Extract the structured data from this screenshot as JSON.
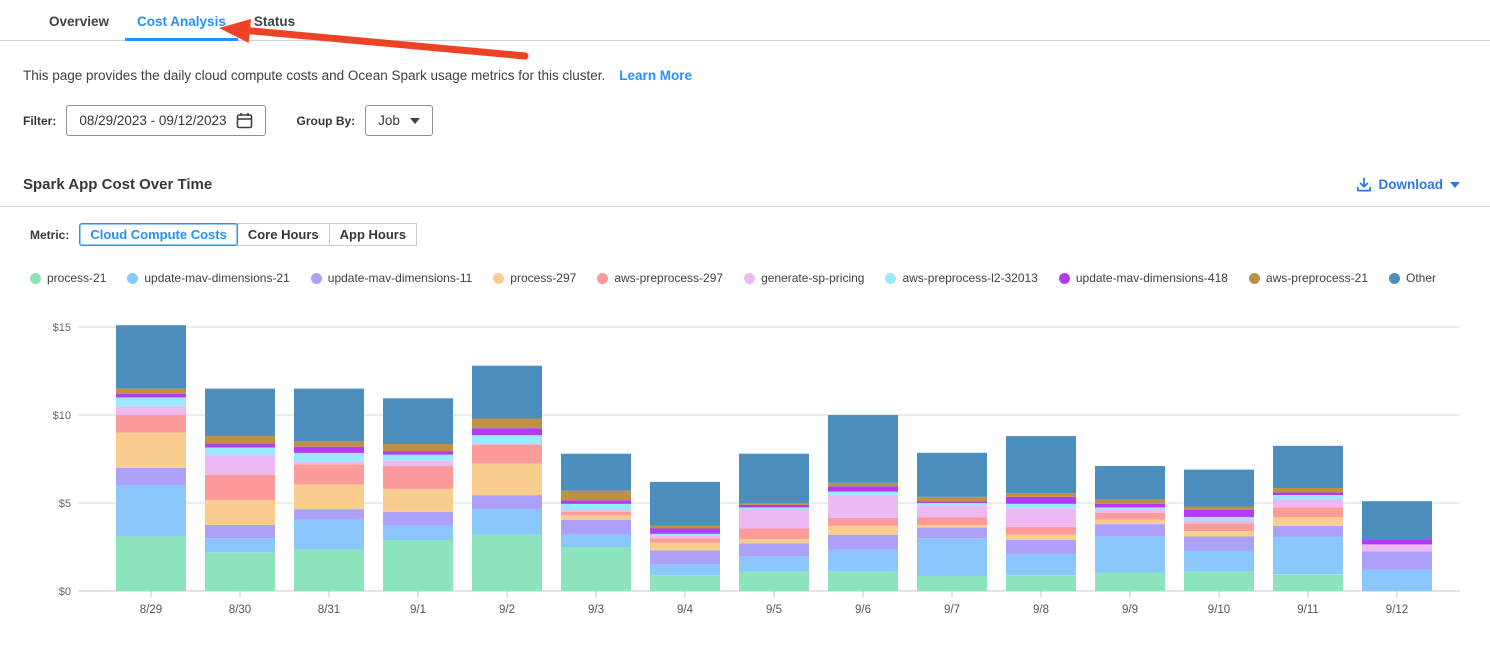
{
  "tabs": {
    "items": [
      {
        "label": "Overview",
        "active": false
      },
      {
        "label": "Cost Analysis",
        "active": true
      },
      {
        "label": "Status",
        "active": false
      }
    ]
  },
  "annotation": {
    "arrow": "red-arrow-pointing-to-cost-analysis-tab",
    "color": "#ed4226"
  },
  "description": {
    "text": "This page provides the daily cloud compute costs and Ocean Spark usage metrics for this cluster.",
    "learn_more": "Learn More"
  },
  "filters": {
    "filter_label": "Filter:",
    "date_range": "08/29/2023 - 09/12/2023",
    "calendar_icon": "calendar-icon",
    "group_by_label": "Group By:",
    "group_by_value": "Job",
    "caret_icon": "caret-down-icon"
  },
  "section": {
    "title": "Spark App Cost Over Time",
    "download_label": "Download",
    "download_icon": "download-icon",
    "download_caret_icon": "caret-down-icon"
  },
  "metric": {
    "label": "Metric:",
    "options": [
      {
        "label": "Cloud Compute Costs",
        "selected": true
      },
      {
        "label": "Core Hours",
        "selected": false
      },
      {
        "label": "App Hours",
        "selected": false
      }
    ]
  },
  "colors": {
    "accent_blue": "#2790ff",
    "download_blue": "#2979e8",
    "gridline": "#d8d8d8",
    "axis_text": "#666666",
    "arrow_red": "#ed4226"
  },
  "chart_data": {
    "type": "bar",
    "stacked": true,
    "title": "Spark App Cost Over Time",
    "xlabel": "",
    "ylabel": "",
    "ytick_prefix": "$",
    "yticks": [
      0,
      5,
      10,
      15
    ],
    "ylim": [
      0,
      16
    ],
    "grid": true,
    "legend_position": "top",
    "categories": [
      "8/29",
      "8/30",
      "8/31",
      "9/1",
      "9/2",
      "9/3",
      "9/4",
      "9/5",
      "9/6",
      "9/7",
      "9/8",
      "9/9",
      "9/10",
      "9/11",
      "9/12"
    ],
    "series": [
      {
        "name": "process-21",
        "color": "#8ce4bc",
        "values": [
          3.1,
          2.2,
          2.35,
          2.9,
          3.2,
          2.5,
          0.9,
          1.1,
          1.1,
          0.85,
          0.9,
          1.05,
          1.1,
          0.95,
          0.0
        ]
      },
      {
        "name": "update-mav-dimensions-21",
        "color": "#8ac7fd",
        "values": [
          2.9,
          0.8,
          1.7,
          0.8,
          1.45,
          0.7,
          0.6,
          0.85,
          1.25,
          2.15,
          1.2,
          2.05,
          1.2,
          2.15,
          1.2
        ]
      },
      {
        "name": "update-mav-dimensions-11",
        "color": "#aba0fa",
        "values": [
          1.0,
          0.75,
          0.6,
          0.8,
          0.8,
          0.85,
          0.8,
          0.75,
          0.85,
          0.6,
          0.8,
          0.7,
          0.8,
          0.6,
          1.05
        ]
      },
      {
        "name": "process-297",
        "color": "#f9cd8d",
        "values": [
          2.0,
          1.4,
          1.4,
          1.3,
          1.8,
          0.25,
          0.45,
          0.25,
          0.5,
          0.15,
          0.3,
          0.25,
          0.3,
          0.5,
          0.0
        ]
      },
      {
        "name": "aws-preprocess-297",
        "color": "#fd9b9b",
        "values": [
          1.0,
          1.45,
          1.15,
          1.3,
          1.05,
          0.2,
          0.25,
          0.6,
          0.45,
          0.45,
          0.45,
          0.4,
          0.45,
          0.55,
          0.0
        ]
      },
      {
        "name": "generate-sp-pricing",
        "color": "#edb9f2",
        "values": [
          0.5,
          1.1,
          0.15,
          0.3,
          0.1,
          0.1,
          0.15,
          1.05,
          1.25,
          0.65,
          1.05,
          0.15,
          0.15,
          0.45,
          0.4
        ]
      },
      {
        "name": "aws-preprocess-l2-32013",
        "color": "#9be9fd",
        "values": [
          0.5,
          0.45,
          0.5,
          0.35,
          0.45,
          0.35,
          0.1,
          0.15,
          0.25,
          0.15,
          0.25,
          0.15,
          0.2,
          0.25,
          0.0
        ]
      },
      {
        "name": "update-mav-dimensions-418",
        "color": "#b23cf5",
        "values": [
          0.2,
          0.2,
          0.35,
          0.2,
          0.4,
          0.2,
          0.3,
          0.15,
          0.3,
          0.1,
          0.4,
          0.2,
          0.4,
          0.15,
          0.3
        ]
      },
      {
        "name": "aws-preprocess-21",
        "color": "#bd9044",
        "values": [
          0.3,
          0.45,
          0.3,
          0.4,
          0.55,
          0.55,
          0.15,
          0.1,
          0.2,
          0.25,
          0.2,
          0.25,
          0.2,
          0.25,
          0.0
        ]
      },
      {
        "name": "Other",
        "color": "#4c8ebe",
        "values": [
          3.6,
          2.7,
          3.0,
          2.6,
          3.0,
          2.1,
          2.5,
          2.8,
          3.85,
          2.5,
          3.25,
          1.9,
          2.1,
          2.4,
          2.15
        ]
      }
    ]
  }
}
